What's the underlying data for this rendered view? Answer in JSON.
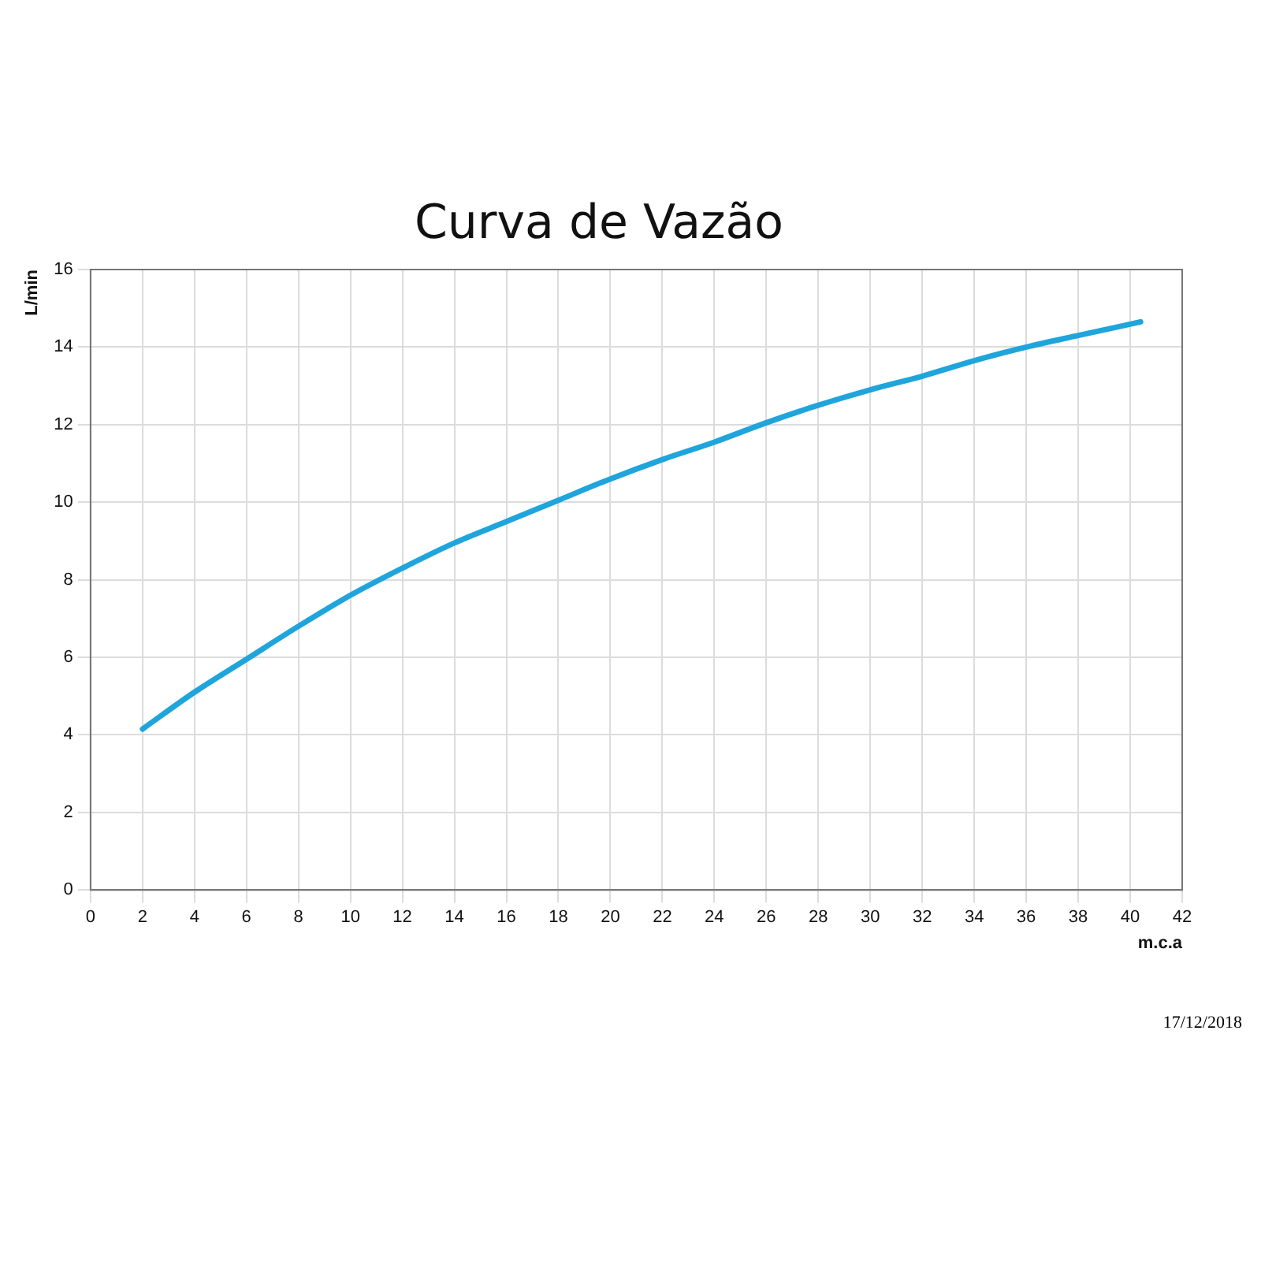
{
  "chart_data": {
    "type": "line",
    "title": "Curva de Vazão",
    "xlabel": "m.c.a",
    "ylabel": "L/min",
    "x": [
      2,
      4,
      6,
      8,
      10,
      12,
      14,
      16,
      18,
      20,
      22,
      24,
      26,
      28,
      30,
      32,
      34,
      36,
      38,
      40.4
    ],
    "series": [
      {
        "color": "#1fa5dc",
        "values": [
          4.15,
          5.1,
          5.95,
          6.8,
          7.6,
          8.3,
          8.95,
          9.5,
          10.05,
          10.6,
          11.1,
          11.55,
          12.05,
          12.5,
          12.9,
          13.25,
          13.65,
          14.0,
          14.3,
          14.65
        ]
      }
    ],
    "xlim": [
      0,
      42
    ],
    "xticks": [
      0,
      2,
      4,
      6,
      8,
      10,
      12,
      14,
      16,
      18,
      20,
      22,
      24,
      26,
      28,
      30,
      32,
      34,
      36,
      38,
      40,
      42
    ],
    "ylim": [
      0,
      16
    ],
    "yticks": [
      0,
      2,
      4,
      6,
      8,
      10,
      12,
      14,
      16
    ],
    "grid": true,
    "legend": false,
    "marker": "none",
    "line_style": "solid",
    "annotations": [
      "17/12/2018"
    ]
  }
}
